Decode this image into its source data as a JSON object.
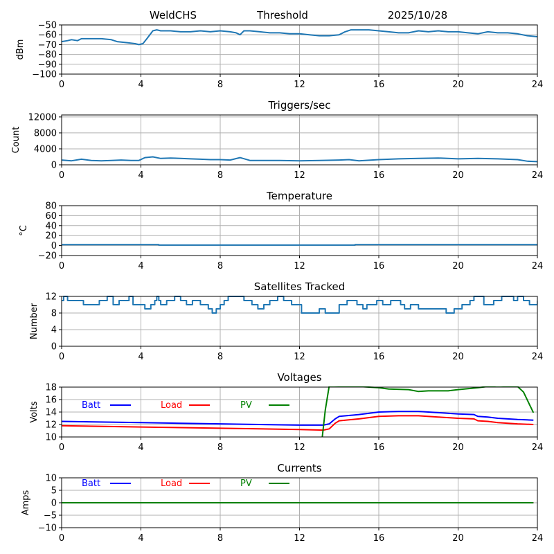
{
  "header": {
    "station": "WeldCHS",
    "mode": "Threshold",
    "date": "2025/10/28"
  },
  "chart_data": [
    {
      "id": "signal",
      "type": "line",
      "title": "",
      "xlabel": "",
      "ylabel": "dBm",
      "xlim": [
        0,
        24
      ],
      "ylim": [
        -100,
        -50
      ],
      "xticks": [
        0,
        4,
        8,
        12,
        16,
        20,
        24
      ],
      "yticks": [
        -100,
        -90,
        -80,
        -70,
        -60,
        -50
      ],
      "ytick_labels": [
        "−100",
        "−90",
        "−80",
        "−70",
        "−60",
        "−50"
      ],
      "grid": true,
      "series": [
        {
          "name": "dBm",
          "color": "#1f77b4",
          "x": [
            0,
            0.3,
            0.5,
            0.8,
            1.0,
            1.5,
            2.0,
            2.5,
            2.8,
            3.3,
            3.7,
            3.9,
            4.1,
            4.3,
            4.6,
            4.8,
            5.0,
            5.5,
            6.0,
            6.5,
            7.0,
            7.5,
            8.0,
            8.5,
            8.8,
            9.0,
            9.2,
            9.5,
            10.0,
            10.5,
            11.0,
            11.5,
            12.0,
            12.5,
            13.0,
            13.5,
            14.0,
            14.3,
            14.6,
            15.0,
            15.5,
            16.0,
            16.5,
            17.0,
            17.5,
            18.0,
            18.5,
            19.0,
            19.5,
            20.0,
            20.5,
            21.0,
            21.5,
            22.0,
            22.5,
            23.0,
            23.5,
            24.0
          ],
          "y": [
            -67,
            -66,
            -65,
            -66,
            -64,
            -64,
            -64,
            -65,
            -67,
            -68,
            -69,
            -70,
            -69,
            -64,
            -56,
            -55,
            -56,
            -56,
            -57,
            -57,
            -56,
            -57,
            -56,
            -57,
            -58,
            -60,
            -56,
            -56,
            -57,
            -58,
            -58,
            -59,
            -59,
            -60,
            -61,
            -61,
            -60,
            -57,
            -55,
            -55,
            -55,
            -56,
            -57,
            -58,
            -58,
            -56,
            -57,
            -56,
            -57,
            -57,
            -58,
            -59,
            -57,
            -58,
            -58,
            -59,
            -61,
            -62
          ]
        }
      ]
    },
    {
      "id": "triggers",
      "type": "line",
      "title": "Triggers/sec",
      "ylabel": "Count",
      "xlim": [
        0,
        24
      ],
      "ylim": [
        0,
        12500
      ],
      "xticks": [
        0,
        4,
        8,
        12,
        16,
        20,
        24
      ],
      "yticks": [
        0,
        4000,
        8000,
        12000
      ],
      "ytick_labels": [
        "0",
        "4000",
        "8000",
        "12000"
      ],
      "grid": true,
      "series": [
        {
          "name": "Count",
          "color": "#1f77b4",
          "x": [
            0,
            0.5,
            1.0,
            1.5,
            2.0,
            2.5,
            3.0,
            3.5,
            3.9,
            4.2,
            4.6,
            5.0,
            5.5,
            6.0,
            6.5,
            7.0,
            7.5,
            8.0,
            8.5,
            9.0,
            9.5,
            10.0,
            11.0,
            12.0,
            13.0,
            14.0,
            14.5,
            15.0,
            16.0,
            17.0,
            18.0,
            19.0,
            20.0,
            21.0,
            22.0,
            23.0,
            23.5,
            24.0
          ],
          "y": [
            1200,
            1000,
            1400,
            1100,
            1000,
            1100,
            1200,
            1100,
            1100,
            1800,
            2000,
            1600,
            1700,
            1600,
            1500,
            1400,
            1300,
            1300,
            1200,
            1800,
            1100,
            1100,
            1100,
            1000,
            1100,
            1200,
            1300,
            1000,
            1300,
            1500,
            1600,
            1700,
            1500,
            1600,
            1500,
            1300,
            900,
            800
          ]
        }
      ]
    },
    {
      "id": "temperature",
      "type": "line",
      "title": "Temperature",
      "ylabel": "°C",
      "xlim": [
        0,
        24
      ],
      "ylim": [
        -20,
        80
      ],
      "xticks": [
        0,
        4,
        8,
        12,
        16,
        20,
        24
      ],
      "yticks": [
        -20,
        0,
        20,
        40,
        60,
        80
      ],
      "ytick_labels": [
        "−20",
        "0",
        "20",
        "40",
        "60",
        "80"
      ],
      "grid": true,
      "series": [
        {
          "name": "Temperature",
          "color": "#1f77b4",
          "x": [
            0,
            4.9,
            4.9,
            14.8,
            14.8,
            24
          ],
          "y": [
            2,
            2,
            1,
            1,
            2,
            2
          ]
        }
      ]
    },
    {
      "id": "satellites",
      "type": "line",
      "title": "Satellites Tracked",
      "ylabel": "Number",
      "xlim": [
        0,
        24
      ],
      "ylim": [
        0,
        12
      ],
      "xticks": [
        0,
        4,
        8,
        12,
        16,
        20,
        24
      ],
      "yticks": [
        0,
        4,
        8,
        12
      ],
      "ytick_labels": [
        "0",
        "4",
        "8",
        "12"
      ],
      "grid": true,
      "series": [
        {
          "name": "Satellites",
          "color": "#1f77b4",
          "step": true,
          "x": [
            0,
            0.1,
            0.3,
            1.1,
            1.9,
            2.3,
            2.6,
            2.9,
            3.2,
            3.4,
            3.6,
            4.2,
            4.5,
            4.7,
            4.8,
            4.9,
            5.0,
            5.3,
            5.7,
            6.0,
            6.3,
            6.6,
            7.0,
            7.4,
            7.6,
            7.8,
            8.0,
            8.2,
            8.4,
            8.6,
            9.2,
            9.6,
            9.9,
            10.2,
            10.5,
            10.9,
            11.2,
            11.6,
            12.1,
            12.8,
            13.0,
            13.3,
            14.0,
            14.4,
            14.6,
            14.9,
            15.2,
            15.4,
            15.6,
            15.9,
            16.2,
            16.6,
            17.1,
            17.3,
            17.6,
            18.0,
            18.3,
            18.7,
            19.0,
            19.4,
            19.8,
            20.2,
            20.6,
            20.8,
            21.3,
            21.8,
            22.2,
            22.6,
            22.8,
            23.0,
            23.3,
            23.6,
            24.0
          ],
          "y": [
            11,
            12,
            11,
            10,
            11,
            12,
            10,
            11,
            11,
            12,
            10,
            9,
            10,
            11,
            12,
            11,
            10,
            11,
            12,
            11,
            10,
            11,
            10,
            9,
            8,
            9,
            10,
            11,
            12,
            12,
            11,
            10,
            9,
            10,
            11,
            12,
            11,
            10,
            8,
            8,
            9,
            8,
            10,
            11,
            11,
            10,
            9,
            10,
            10,
            11,
            10,
            11,
            10,
            9,
            10,
            9,
            9,
            9,
            9,
            8,
            9,
            10,
            11,
            12,
            10,
            11,
            12,
            12,
            11,
            12,
            11,
            10,
            11
          ]
        }
      ]
    },
    {
      "id": "voltages",
      "type": "line",
      "title": "Voltages",
      "ylabel": "Volts",
      "xlim": [
        0,
        24
      ],
      "ylim": [
        10,
        18
      ],
      "xticks": [
        0,
        4,
        8,
        12,
        16,
        20,
        24
      ],
      "yticks": [
        10,
        12,
        14,
        16,
        18
      ],
      "ytick_labels": [
        "10",
        "12",
        "14",
        "16",
        "18"
      ],
      "grid": true,
      "legend": [
        {
          "label": "Batt",
          "color": "#0000ff"
        },
        {
          "label": "Load",
          "color": "#ff0000"
        },
        {
          "label": "PV",
          "color": "#008000"
        }
      ],
      "series": [
        {
          "name": "Batt",
          "color": "#0000ff",
          "x": [
            0,
            4,
            8,
            12,
            13.2,
            13.5,
            13.8,
            14.0,
            15.0,
            16.0,
            17.0,
            18.0,
            19.0,
            20.0,
            20.8,
            21.0,
            21.5,
            22.0,
            23.0,
            23.8
          ],
          "y": [
            12.5,
            12.3,
            12.1,
            11.9,
            11.9,
            12.1,
            12.9,
            13.3,
            13.6,
            14.0,
            14.1,
            14.1,
            13.9,
            13.7,
            13.6,
            13.3,
            13.2,
            13.0,
            12.8,
            12.7
          ]
        },
        {
          "name": "Load",
          "color": "#ff0000",
          "x": [
            0,
            4,
            8,
            12,
            13.2,
            13.5,
            13.8,
            14.0,
            15.0,
            16.0,
            17.0,
            18.0,
            19.0,
            20.0,
            20.8,
            21.0,
            21.5,
            22.0,
            23.0,
            23.8
          ],
          "y": [
            11.8,
            11.6,
            11.4,
            11.2,
            11.1,
            11.3,
            12.2,
            12.6,
            12.9,
            13.3,
            13.4,
            13.4,
            13.2,
            13.0,
            12.9,
            12.6,
            12.5,
            12.3,
            12.1,
            12.0
          ]
        },
        {
          "name": "PV",
          "color": "#008000",
          "x": [
            13.15,
            13.3,
            13.5,
            15.0,
            16.0,
            16.5,
            17.5,
            18.0,
            18.5,
            19.5,
            20.0,
            21.0,
            21.5,
            22.0,
            23.0,
            23.3,
            23.6,
            23.8
          ],
          "y": [
            10,
            14.3,
            18.2,
            18.1,
            17.9,
            17.7,
            17.6,
            17.3,
            17.4,
            17.4,
            17.6,
            17.9,
            18.1,
            18.2,
            18.1,
            17.2,
            15.2,
            13.9
          ]
        }
      ]
    },
    {
      "id": "currents",
      "type": "line",
      "title": "Currents",
      "ylabel": "Amps",
      "xlim": [
        0,
        24
      ],
      "ylim": [
        -10,
        10
      ],
      "xticks": [
        0,
        4,
        8,
        12,
        16,
        20,
        24
      ],
      "yticks": [
        -10,
        -5,
        0,
        5,
        10
      ],
      "ytick_labels": [
        "−10",
        "−5",
        "0",
        "5",
        "10"
      ],
      "grid": true,
      "legend": [
        {
          "label": "Batt",
          "color": "#0000ff"
        },
        {
          "label": "Load",
          "color": "#ff0000"
        },
        {
          "label": "PV",
          "color": "#008000"
        }
      ],
      "series": [
        {
          "name": "Batt",
          "color": "#0000ff",
          "x": [
            0,
            23.8
          ],
          "y": [
            0,
            0
          ]
        },
        {
          "name": "Load",
          "color": "#ff0000",
          "x": [
            0,
            23.8
          ],
          "y": [
            0,
            0
          ]
        },
        {
          "name": "PV",
          "color": "#008000",
          "x": [
            0,
            23.8
          ],
          "y": [
            0,
            0
          ]
        }
      ]
    }
  ]
}
